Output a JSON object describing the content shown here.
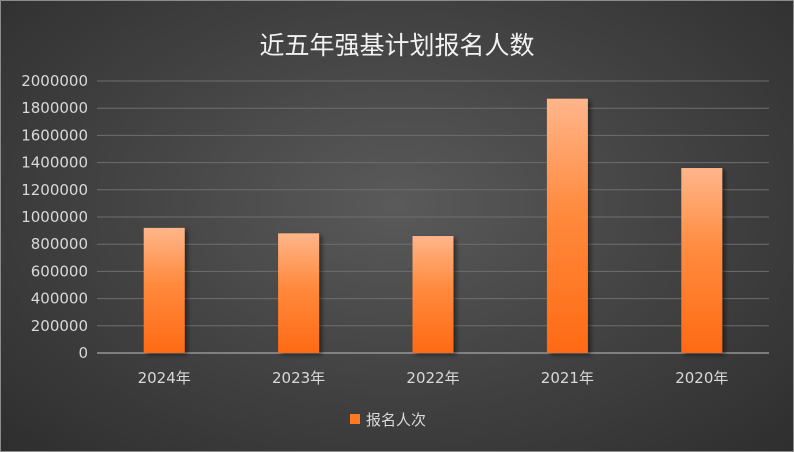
{
  "chart_data": {
    "type": "bar",
    "title": "近五年强基计划报名人数",
    "categories": [
      "2024年",
      "2023年",
      "2022年",
      "2021年",
      "2020年"
    ],
    "series": [
      {
        "name": "报名人次",
        "values": [
          920000,
          880000,
          860000,
          1870000,
          1360000
        ],
        "color": "#ff7a22"
      }
    ],
    "xlabel": "",
    "ylabel": "",
    "ylim": [
      0,
      2000000
    ],
    "yticks": [
      0,
      200000,
      400000,
      600000,
      800000,
      1000000,
      1200000,
      1400000,
      1600000,
      1800000,
      2000000
    ],
    "grid": true,
    "legend": "bottom"
  }
}
